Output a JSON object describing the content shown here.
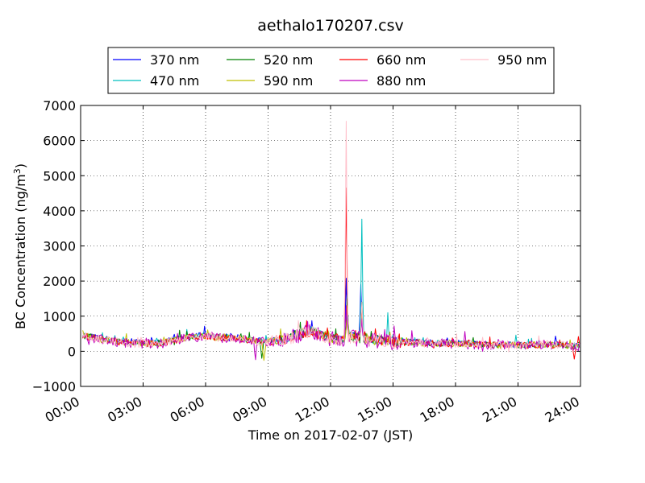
{
  "chart_data": {
    "type": "line",
    "title": "aethalo170207.csv",
    "xlabel": "Time on 2017-02-07 (JST)",
    "ylabel": "BC Concentration (ng/m³)",
    "ylabel_parts": {
      "main": "BC Concentration (ng/m",
      "sup": "3",
      "end": ")"
    },
    "xlim": [
      0,
      24
    ],
    "ylim": [
      -1000,
      7000
    ],
    "x_unit": "hours",
    "x_ticks": [
      0,
      3,
      6,
      9,
      12,
      15,
      18,
      21,
      24
    ],
    "x_tick_labels": [
      "00:00",
      "03:00",
      "06:00",
      "09:00",
      "12:00",
      "15:00",
      "18:00",
      "21:00",
      "24:00"
    ],
    "y_ticks": [
      -1000,
      0,
      1000,
      2000,
      3000,
      4000,
      5000,
      6000,
      7000
    ],
    "y_tick_labels": [
      "−1000",
      "0",
      "1000",
      "2000",
      "3000",
      "4000",
      "5000",
      "6000",
      "7000"
    ],
    "grid": true,
    "legend_position": "top",
    "legend_columns": 4,
    "baseline_x": [
      0,
      0.5,
      1,
      1.5,
      2,
      2.5,
      3,
      3.5,
      4,
      4.5,
      5,
      5.5,
      6,
      6.5,
      7,
      7.5,
      8,
      8.5,
      9,
      9.5,
      10,
      10.5,
      11,
      11.5,
      12,
      12.5,
      13,
      13.5,
      14,
      14.5,
      15,
      15.5,
      16,
      16.5,
      17,
      17.5,
      18,
      18.5,
      19,
      19.5,
      20,
      20.5,
      21,
      21.5,
      22,
      22.5,
      23,
      23.5,
      24
    ],
    "baseline_y": [
      450,
      420,
      360,
      300,
      280,
      250,
      240,
      230,
      250,
      330,
      400,
      430,
      470,
      420,
      400,
      380,
      350,
      300,
      280,
      320,
      400,
      500,
      600,
      500,
      380,
      350,
      420,
      380,
      330,
      300,
      280,
      270,
      260,
      250,
      240,
      240,
      230,
      220,
      210,
      200,
      190,
      180,
      170,
      180,
      200,
      200,
      180,
      160,
      160
    ],
    "series": [
      {
        "name": "370 nm",
        "color": "#0000ff",
        "noise": 80,
        "scale": 1.05,
        "spikes": [
          {
            "x": 12.75,
            "y": 2080
          },
          {
            "x": 13.45,
            "y": 1900
          },
          {
            "x": 11.1,
            "y": 870
          }
        ]
      },
      {
        "name": "470 nm",
        "color": "#00bfbf",
        "noise": 80,
        "scale": 1.0,
        "spikes": [
          {
            "x": 12.8,
            "y": 1600
          },
          {
            "x": 13.5,
            "y": 3760
          },
          {
            "x": 14.75,
            "y": 1100
          },
          {
            "x": 20.9,
            "y": 460
          }
        ]
      },
      {
        "name": "520 nm",
        "color": "#008000",
        "noise": 90,
        "scale": 0.98,
        "spikes": [
          {
            "x": 12.8,
            "y": 1500
          },
          {
            "x": 13.5,
            "y": 1400
          },
          {
            "x": 8.7,
            "y": -200
          }
        ]
      },
      {
        "name": "590 nm",
        "color": "#bfbf00",
        "noise": 100,
        "scale": 0.96,
        "spikes": [
          {
            "x": 12.8,
            "y": 1300
          },
          {
            "x": 13.5,
            "y": 1200
          },
          {
            "x": 8.8,
            "y": -260
          }
        ]
      },
      {
        "name": "660 nm",
        "color": "#ff0000",
        "noise": 100,
        "scale": 0.95,
        "spikes": [
          {
            "x": 12.75,
            "y": 4650
          },
          {
            "x": 13.5,
            "y": 1300
          },
          {
            "x": 23.7,
            "y": -220
          },
          {
            "x": 23.9,
            "y": 420
          }
        ]
      },
      {
        "name": "880 nm",
        "color": "#bf00bf",
        "noise": 140,
        "scale": 0.92,
        "spikes": [
          {
            "x": 12.75,
            "y": 1300
          },
          {
            "x": 13.5,
            "y": 900
          },
          {
            "x": 10.9,
            "y": 850
          },
          {
            "x": 8.4,
            "y": -240
          }
        ]
      },
      {
        "name": "950 nm",
        "color": "#ffc0cb",
        "noise": 120,
        "scale": 0.94,
        "spikes": [
          {
            "x": 12.75,
            "y": 6550
          },
          {
            "x": 13.5,
            "y": 1400
          }
        ]
      }
    ]
  }
}
